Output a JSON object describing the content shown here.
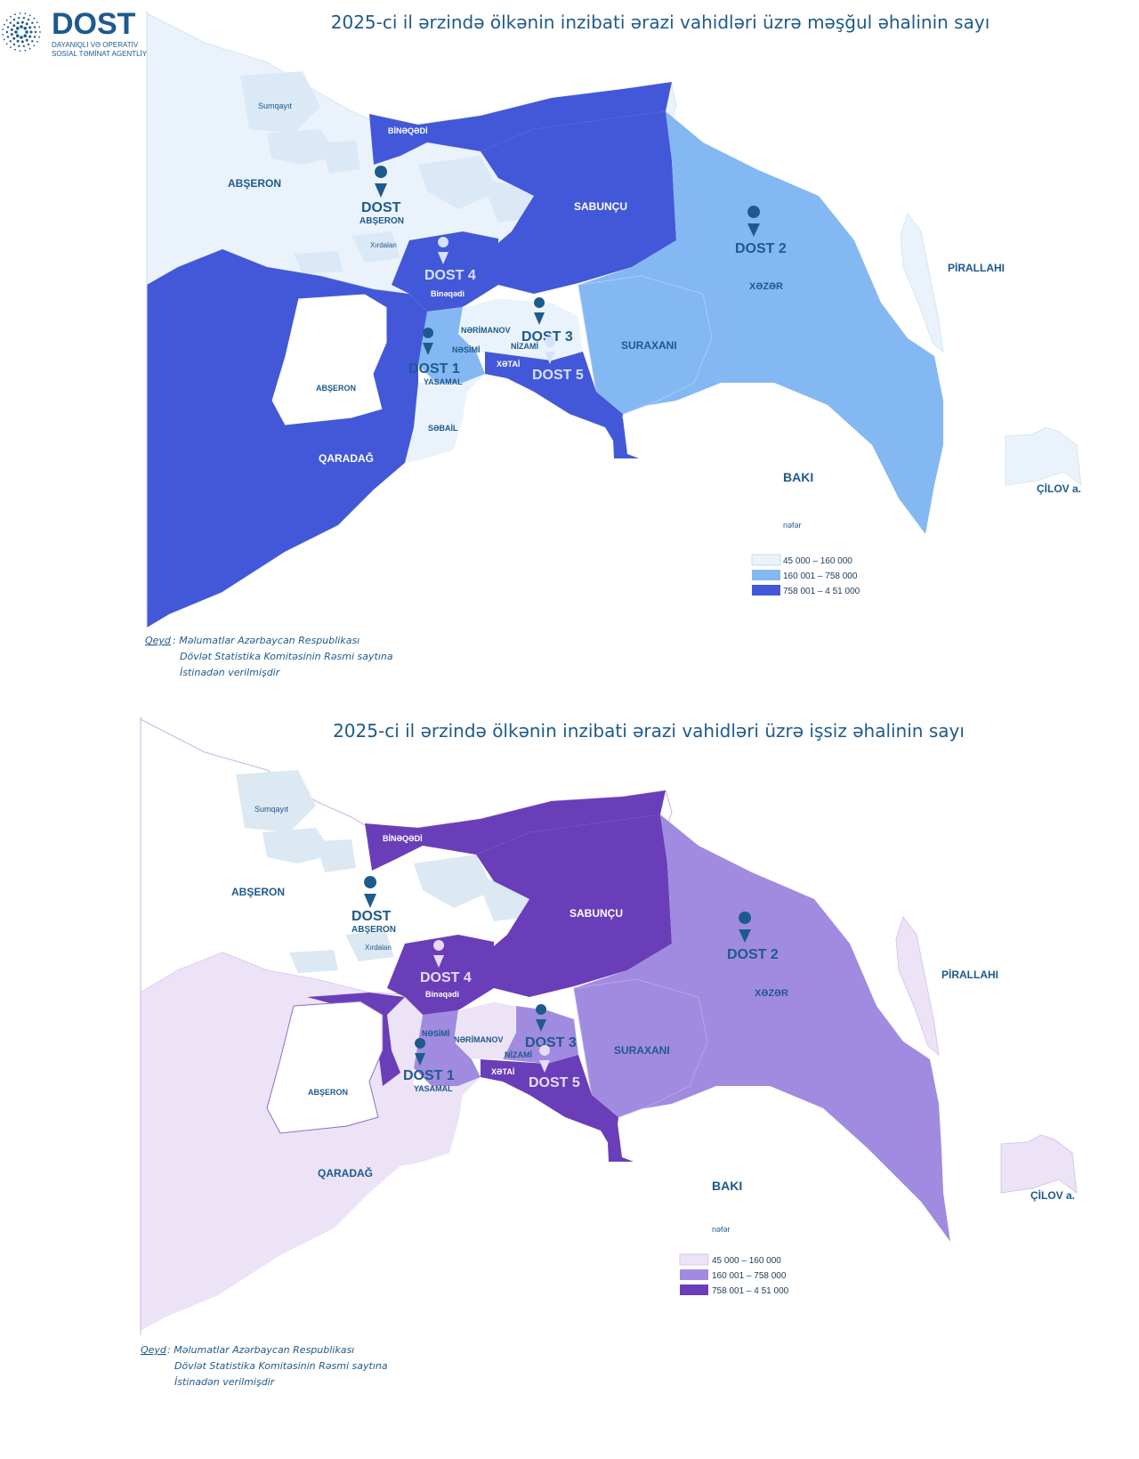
{
  "logo": {
    "brand": "DOST",
    "tagline1": "DAYANIQLI VƏ OPERATİV",
    "tagline2": "SOSİAL TƏMİNAT AGENTLİYİ"
  },
  "maps": [
    {
      "title": "2025-ci il ərzində ölkənin inzibati ərazi vahidləri üzrə məşğul əhalinin sayı",
      "palette": {
        "light": "#eaf3fb",
        "mid": "#84b8f2",
        "dark": "#4358d8",
        "outline": "#d7e6f4",
        "text": "#1e5a8c"
      },
      "region_labels": {
        "sumqayit": "Sumqayıt",
        "absheron_n": "ABŞERON",
        "binagadi_n": "BİNƏQƏDİ",
        "sabuncu": "SABUNÇU",
        "xazar": "XƏZƏR",
        "pirallahi": "PİRALLAHI",
        "xirdalan": "Xırdalan",
        "binagadi_s": "Binəqədi",
        "narimanov": "NƏRİMANOV",
        "nasimi": "NƏSİMİ",
        "nizami": "NİZAMİ",
        "xatai": "XƏTAİ",
        "suraxani": "SURAXANI",
        "yasamal": "YASAMAL",
        "sabail": "SƏBAİL",
        "absheron_s": "ABŞERON",
        "qaradag": "QARADAĞ",
        "baki": "BAKI",
        "cilov": "ÇİLOV a."
      },
      "dost_offices": [
        {
          "name": "DOST",
          "sub": "ABŞERON"
        },
        {
          "name": "DOST 1",
          "sub": ""
        },
        {
          "name": "DOST 2",
          "sub": ""
        },
        {
          "name": "DOST 3",
          "sub": ""
        },
        {
          "name": "DOST 4",
          "sub": ""
        },
        {
          "name": "DOST 5",
          "sub": ""
        }
      ],
      "legend": {
        "unit": "nəfər",
        "items": [
          {
            "label": "45 000 – 160 000",
            "color": "#eaf3fb"
          },
          {
            "label": "160 001 – 758 000",
            "color": "#84b8f2"
          },
          {
            "label": "758 001 – 4 51 000",
            "color": "#4358d8"
          }
        ]
      },
      "note": {
        "prefix": "Qeyd",
        "line1": ": Məlumatlar Azərbaycan Respublikası",
        "line2": "Dövlət Statistika Komitəsinin Rəsmi saytına",
        "line3": "İstinadən verilmişdir"
      }
    },
    {
      "title": "2025-ci il ərzində ölkənin inzibati ərazi vahidləri üzrə işsiz əhalinin sayı",
      "palette": {
        "light": "#ece3f7",
        "mid": "#a08be0",
        "dark": "#6a3eb8",
        "outline": "#dce8f2",
        "text": "#1e5a8c"
      },
      "region_labels": {
        "sumqayit": "Sumqayıt",
        "absheron_n": "ABŞERON",
        "binagadi_n": "BİNƏQƏDİ",
        "sabuncu": "SABUNÇU",
        "xazar": "XƏZƏR",
        "pirallahi": "PİRALLAHI",
        "xirdalan": "Xırdalan",
        "binagadi_s": "Binəqədi",
        "narimanov": "NƏRİMANOV",
        "nasimi": "NƏSİMİ",
        "nizami": "NİZAMİ",
        "xatai": "XƏTAİ",
        "suraxani": "SURAXANI",
        "yasamal": "YASAMAL",
        "sabail": "",
        "absheron_s": "ABŞERON",
        "qaradag": "QARADAĞ",
        "baki": "BAKI",
        "cilov": "ÇİLOV a."
      },
      "dost_offices": [
        {
          "name": "DOST",
          "sub": "ABŞERON"
        },
        {
          "name": "DOST 1",
          "sub": ""
        },
        {
          "name": "DOST 2",
          "sub": ""
        },
        {
          "name": "DOST 3",
          "sub": ""
        },
        {
          "name": "DOST 4",
          "sub": ""
        },
        {
          "name": "DOST 5",
          "sub": ""
        }
      ],
      "legend": {
        "unit": "nəfər",
        "items": [
          {
            "label": "45 000 – 160 000",
            "color": "#ece3f7"
          },
          {
            "label": "160 001 – 758 000",
            "color": "#a08be0"
          },
          {
            "label": "758 001 – 4 51 000",
            "color": "#6a3eb8"
          }
        ]
      },
      "note": {
        "prefix": "Qeyd",
        "line1": ": Məlumatlar Azərbaycan Respublikası",
        "line2": "Dövlət Statistika Komitəsinin Rəsmi saytına",
        "line3": "İstinadən verilmişdir"
      }
    }
  ]
}
